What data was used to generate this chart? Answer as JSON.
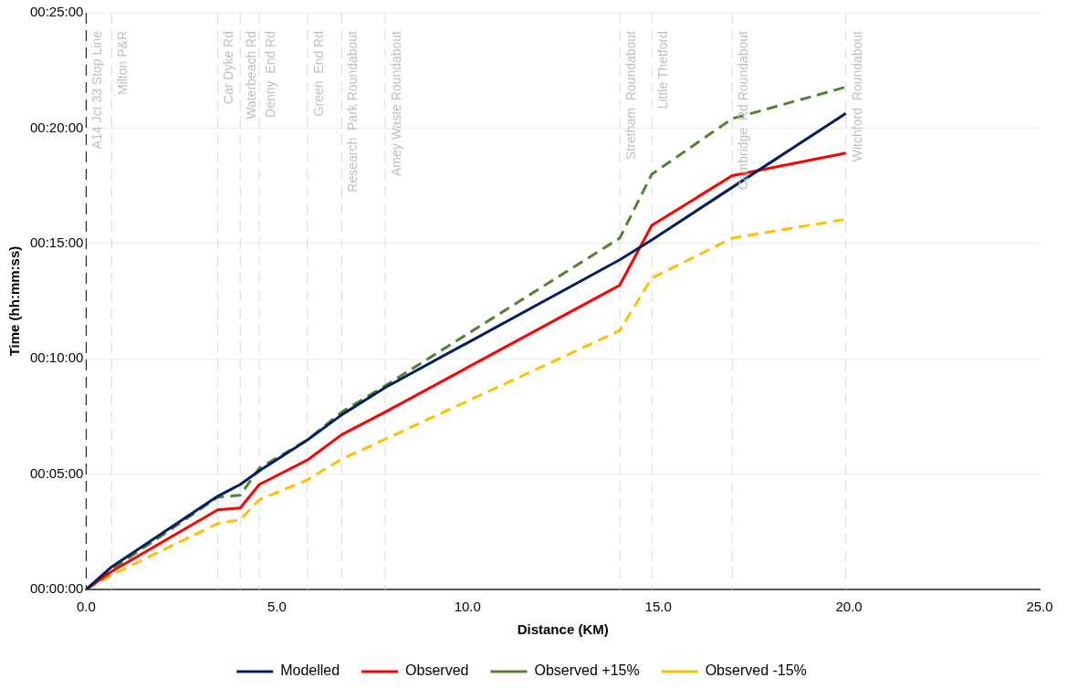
{
  "chart_data": {
    "type": "line",
    "xlabel": "Distance (KM)",
    "ylabel": "Time (hh:mm:ss)",
    "x": [
      0,
      0.67,
      3.45,
      4.04,
      4.54,
      5.8,
      6.7,
      7.84,
      13.99,
      14.83,
      16.94,
      19.92
    ],
    "series": [
      {
        "name": "Modelled",
        "color": "#002060",
        "line_style": "solid",
        "values": [
          0,
          0.98,
          4.04,
          4.55,
          5.14,
          6.48,
          7.57,
          8.75,
          14.29,
          15.15,
          17.43,
          20.64
        ]
      },
      {
        "name": "Observed",
        "color": "#ff0000",
        "line_style": "solid",
        "values": [
          0,
          0.78,
          3.45,
          3.53,
          4.55,
          5.61,
          6.71,
          7.69,
          13.19,
          15.78,
          17.94,
          18.92
        ]
      },
      {
        "name": "Observed +15%",
        "color": "#548235",
        "line_style": "dashed",
        "values": [
          0,
          0.86,
          4.0,
          4.08,
          5.26,
          6.48,
          7.69,
          8.83,
          15.23,
          18.0,
          20.41,
          21.78
        ]
      },
      {
        "name": "Observed -15%",
        "color": "#ffc000",
        "line_style": "dashed",
        "values": [
          0,
          0.63,
          2.86,
          3.02,
          3.89,
          4.75,
          5.65,
          6.51,
          11.22,
          13.5,
          15.23,
          16.05
        ]
      }
    ],
    "xlim": [
      0,
      25
    ],
    "xticks": [
      {
        "value": 0,
        "label": "0.0"
      },
      {
        "value": 5,
        "label": "5.0"
      },
      {
        "value": 10,
        "label": "10.0"
      },
      {
        "value": 15,
        "label": "15.0"
      },
      {
        "value": 20,
        "label": "20.0"
      },
      {
        "value": 25,
        "label": "25.0"
      }
    ],
    "ylim": [
      0,
      25
    ],
    "yticks": [
      {
        "value": 0,
        "label": "00:00:00"
      },
      {
        "value": 5,
        "label": "00:05:00"
      },
      {
        "value": 10,
        "label": "00:10:00"
      },
      {
        "value": 15,
        "label": "00:15:00"
      },
      {
        "value": 20,
        "label": "00:20:00"
      },
      {
        "value": 25,
        "label": "00:25:00"
      }
    ],
    "ref_lines": [
      {
        "axis": "x",
        "value": 0,
        "label": "A14 Jct 33 Stop Line",
        "color": "#000000",
        "line_style": "dashed"
      },
      {
        "axis": "x",
        "value": 0.67,
        "label": "Milton P&R",
        "color": "#d9d9d9",
        "line_style": "dashed"
      },
      {
        "axis": "x",
        "value": 3.45,
        "label": "Car Dyke Rd",
        "color": "#d9d9d9",
        "line_style": "dashed"
      },
      {
        "axis": "x",
        "value": 4.04,
        "label": "Waterbeach Rd",
        "color": "#d9d9d9",
        "line_style": "dashed"
      },
      {
        "axis": "x",
        "value": 4.54,
        "label": "Denny  End Rd",
        "color": "#d9d9d9",
        "line_style": "dashed"
      },
      {
        "axis": "x",
        "value": 5.8,
        "label": "Green  End Rd",
        "color": "#d9d9d9",
        "line_style": "dashed"
      },
      {
        "axis": "x",
        "value": 6.7,
        "label": "Research  Park Roundabout",
        "color": "#d9d9d9",
        "line_style": "dashed"
      },
      {
        "axis": "x",
        "value": 7.84,
        "label": "Amey Waste Roundabout",
        "color": "#d9d9d9",
        "line_style": "dashed"
      },
      {
        "axis": "x",
        "value": 13.99,
        "label": "Stretham  Roundabout",
        "color": "#d9d9d9",
        "line_style": "dashed"
      },
      {
        "axis": "x",
        "value": 14.83,
        "label": "Little Thetford",
        "color": "#d9d9d9",
        "line_style": "dashed"
      },
      {
        "axis": "x",
        "value": 16.94,
        "label": "Cambridge  Rd Roundabout",
        "color": "#d9d9d9",
        "line_style": "dashed"
      },
      {
        "axis": "x",
        "value": 19.92,
        "label": "Witchford  Roundabout",
        "color": "#d9d9d9",
        "line_style": "dashed"
      }
    ],
    "grid": "y",
    "legend": "bottom",
    "marker": "none"
  }
}
